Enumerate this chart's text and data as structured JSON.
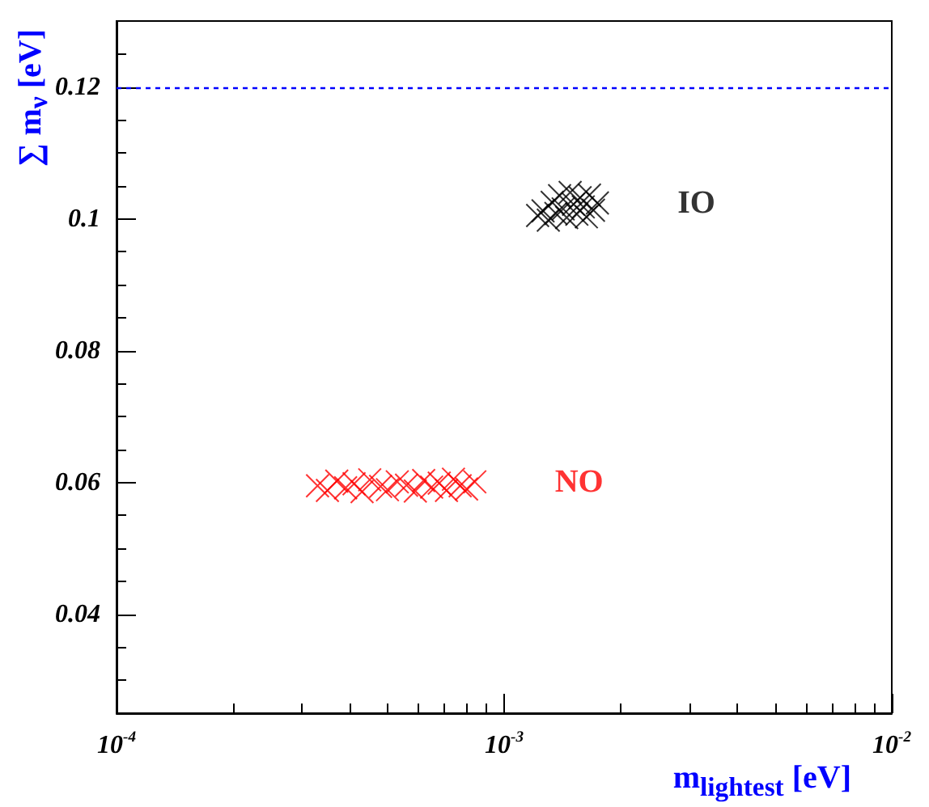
{
  "chart_data": {
    "type": "scatter",
    "xlabel": "m$_{lightest}$ [eV]",
    "ylabel": "∑ m$_{ν}$ [eV]",
    "log": "x",
    "xlim": [
      0.0001,
      0.01
    ],
    "ylim": [
      0.025,
      0.13
    ],
    "xticks": [
      {
        "value": 0.0001,
        "label": "10$^{-4}$"
      },
      {
        "value": 0.001,
        "label": "10$^{-3}$"
      },
      {
        "value": 0.01,
        "label": "10$^{-2}$"
      }
    ],
    "yticks": [
      0.04,
      0.06,
      0.08,
      0.1,
      0.12
    ],
    "grid": false,
    "legend": false,
    "marker": "cross",
    "ref_lines": [
      {
        "axis": "y",
        "value": 0.12,
        "label": null,
        "color": "#0000ff",
        "line_style": "dotted"
      }
    ],
    "series": [
      {
        "name": "NO",
        "color": "#ff0000",
        "x": [
          0.00033,
          0.00035,
          0.00037,
          0.00039,
          0.00041,
          0.00043,
          0.00045,
          0.00048,
          0.0005,
          0.00053,
          0.00056,
          0.00059,
          0.00062,
          0.00065,
          0.00068,
          0.00071,
          0.00074,
          0.00077,
          0.0008,
          0.00084
        ],
        "values": [
          0.0595,
          0.0588,
          0.0602,
          0.0592,
          0.0598,
          0.0586,
          0.0604,
          0.0594,
          0.0589,
          0.0601,
          0.0596,
          0.0587,
          0.0603,
          0.0593,
          0.0599,
          0.0588,
          0.0605,
          0.0595,
          0.059,
          0.0601
        ]
      },
      {
        "name": "IO",
        "color": "#000000",
        "x": [
          0.00122,
          0.00126,
          0.0013,
          0.00133,
          0.00136,
          0.00139,
          0.00142,
          0.00145,
          0.00148,
          0.00151,
          0.00154,
          0.00157,
          0.0016,
          0.00163,
          0.00166,
          0.0017,
          0.00174
        ],
        "values": [
          0.1005,
          0.1012,
          0.0998,
          0.1025,
          0.1008,
          0.1035,
          0.1015,
          0.1002,
          0.104,
          0.1022,
          0.1007,
          0.1032,
          0.1018,
          0.1003,
          0.1036,
          0.1013,
          0.1024
        ]
      }
    ]
  }
}
